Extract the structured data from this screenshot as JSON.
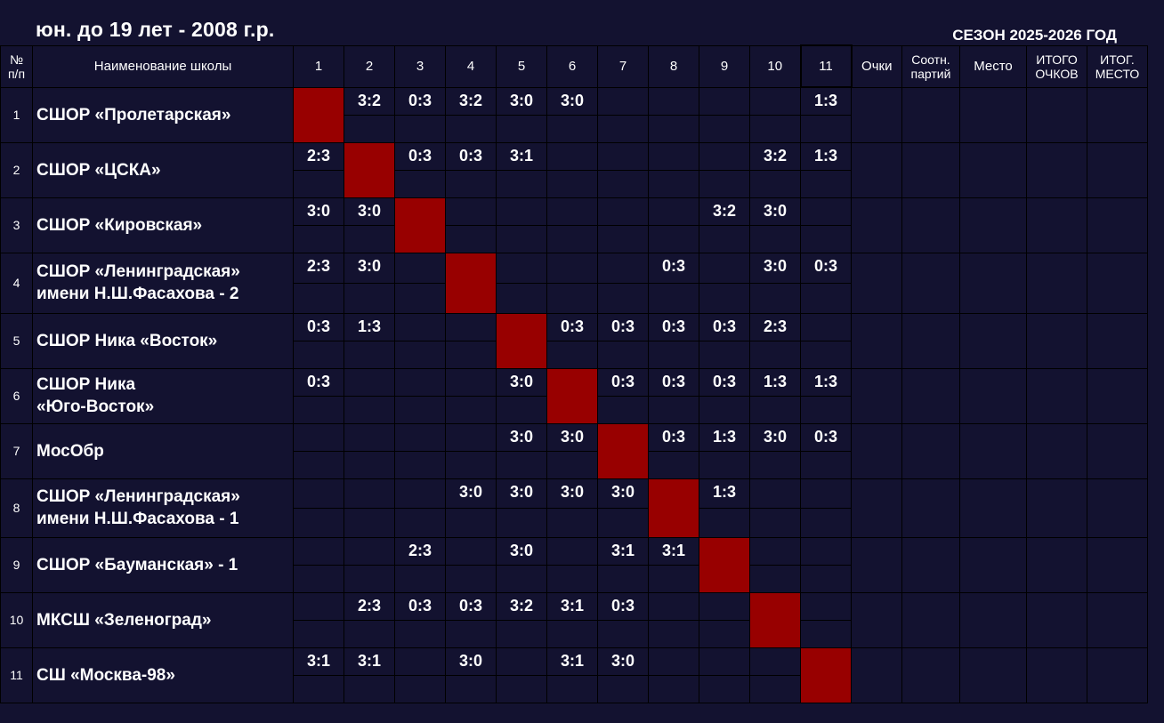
{
  "title": "юн. до 19 лет - 2008 г.р.",
  "season": "СЕЗОН 2025-2026 ГОД",
  "header": {
    "index_label": "№ п/п",
    "school_label": "Наименование школы",
    "columns": [
      "1",
      "2",
      "3",
      "4",
      "5",
      "6",
      "7",
      "8",
      "9",
      "10",
      "11"
    ],
    "points_label": "Очки",
    "ratio_label": "Соотн. партий",
    "place_label": "Место",
    "total_points_label": "ИТОГО ОЧКОВ",
    "final_place_label": "ИТОГ. МЕСТО"
  },
  "colors": {
    "background": "#131230",
    "diagonal": "#980000",
    "border": "#000000",
    "text": "#ffffff"
  },
  "rows": [
    {
      "index": "1",
      "school": "СШОР «Пролетарская»",
      "scores": [
        "",
        "3:2",
        "0:3",
        "3:2",
        "3:0",
        "3:0",
        "",
        "",
        "",
        "",
        "1:3"
      ]
    },
    {
      "index": "2",
      "school": "СШОР «ЦСКА»",
      "scores": [
        "2:3",
        "",
        "0:3",
        "0:3",
        "3:1",
        "",
        "",
        "",
        "",
        "3:2",
        "1:3"
      ]
    },
    {
      "index": "3",
      "school": "СШОР «Кировская»",
      "scores": [
        "3:0",
        "3:0",
        "",
        "",
        "",
        "",
        "",
        "",
        "3:2",
        "3:0",
        ""
      ]
    },
    {
      "index": "4",
      "school": "СШОР «Ленинградская» имени Н.Ш.Фасахова - 2",
      "scores": [
        "2:3",
        "3:0",
        "",
        "",
        "",
        "",
        "",
        "0:3",
        "",
        "3:0",
        "0:3"
      ]
    },
    {
      "index": "5",
      "school": "СШОР Ника «Восток»",
      "scores": [
        "0:3",
        "1:3",
        "",
        "",
        "",
        "0:3",
        "0:3",
        "0:3",
        "0:3",
        "2:3",
        ""
      ]
    },
    {
      "index": "6",
      "school": "СШОР Ника «Юго-Восток»",
      "scores": [
        "0:3",
        "",
        "",
        "",
        "3:0",
        "",
        "0:3",
        "0:3",
        "0:3",
        "1:3",
        "1:3"
      ]
    },
    {
      "index": "7",
      "school": "МосОбр",
      "scores": [
        "",
        "",
        "",
        "",
        "3:0",
        "3:0",
        "",
        "0:3",
        "1:3",
        "3:0",
        "0:3"
      ]
    },
    {
      "index": "8",
      "school": "СШОР «Ленинградская» имени Н.Ш.Фасахова - 1",
      "scores": [
        "",
        "",
        "",
        "3:0",
        "3:0",
        "3:0",
        "3:0",
        "",
        "1:3",
        "",
        ""
      ]
    },
    {
      "index": "9",
      "school": "СШОР «Бауманская» - 1",
      "scores": [
        "",
        "",
        "2:3",
        "",
        "3:0",
        "",
        "3:1",
        "3:1",
        "",
        "",
        ""
      ]
    },
    {
      "index": "10",
      "school": "МКСШ «Зеленоград»",
      "scores": [
        "",
        "2:3",
        "0:3",
        "0:3",
        "3:2",
        "3:1",
        "0:3",
        "",
        "",
        "",
        ""
      ]
    },
    {
      "index": "11",
      "school": "СШ «Москва-98»",
      "scores": [
        "3:1",
        "3:1",
        "",
        "3:0",
        "",
        "3:1",
        "3:0",
        "",
        "",
        "",
        ""
      ]
    }
  ]
}
